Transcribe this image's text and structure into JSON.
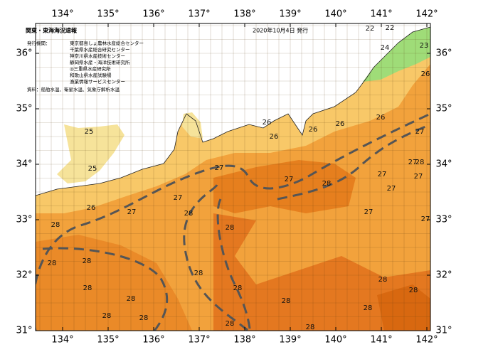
{
  "map": {
    "title": "関東・東海海況速報",
    "issued": "2020年10月4日 発行",
    "issuer_heading": "発行機関：",
    "issuers": [
      "東京都島しょ農林水産総合センター",
      "千葉県水産総合研究センター",
      "神奈川県水産技術センター",
      "静岡県水産・海洋技術研究所",
      "◎三重県水産研究所",
      "和歌山県水産試験場",
      "漁業情報サービスセンター"
    ],
    "source": "資料：船舶水温、衛星水温、気象庁解析水温",
    "lon_labels": [
      "134°",
      "135°",
      "136°",
      "137°",
      "138°",
      "139°",
      "140°",
      "141°",
      "142°"
    ],
    "lat_labels": [
      "36°",
      "35°",
      "34°",
      "33°",
      "32°",
      "31°"
    ],
    "contour_labels": [
      "22",
      "22",
      "24",
      "23",
      "26",
      "25",
      "25",
      "26",
      "26",
      "26",
      "26",
      "26",
      "26",
      "27",
      "27",
      "27",
      "27",
      "27",
      "27",
      "27",
      "27",
      "27",
      "27",
      "27",
      "28",
      "28",
      "28",
      "28",
      "28",
      "28",
      "28",
      "28",
      "28",
      "28",
      "28",
      "28",
      "28",
      "28",
      "28",
      "28",
      "28",
      "28",
      "28"
    ]
  }
}
